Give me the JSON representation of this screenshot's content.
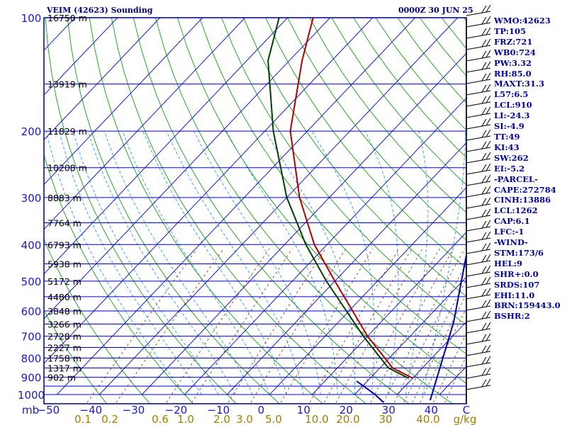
{
  "header": {
    "station_title": "VEIM (42623) Sounding",
    "datetime": "0000Z 30 JUN 25"
  },
  "theme": {
    "frame": "#000080",
    "isobar": "#0000cc",
    "isotherm": "#1a1acc",
    "dry_adiabat": "#2aa52a",
    "moist_adiabat": "#3fa0ff",
    "mixing_ratio": "#8b5a2b",
    "temperature": "#b00000",
    "dewpoint": "#004000",
    "wind_profile": "#0000a0",
    "label_pressure": "#1a1acc",
    "label_temperature": "#1a1acc",
    "label_mixing": "#a08000"
  },
  "chart_data": {
    "type": "line",
    "title": "VEIM (42623) Sounding",
    "subtitle": "0000Z 30 JUN 25",
    "diagram": "skew-T log-p",
    "yaxis": {
      "unit": "mb",
      "scale": "log",
      "range": [
        1000,
        100
      ],
      "pressure_ticks": [
        100,
        200,
        300,
        400,
        500,
        600,
        700,
        800,
        900,
        1000
      ]
    },
    "xaxis": {
      "temperature_ticks": [
        -50,
        -40,
        -30,
        -20,
        -10,
        0,
        10,
        20,
        30,
        40,
        "C"
      ],
      "temperature_ticks_text": [
        "−50",
        "−40",
        "−30",
        "−20",
        "−10",
        "0",
        "10",
        "20",
        "30",
        "40",
        "C"
      ],
      "mixing_ratio_ticks": [
        "0.1",
        "0.2",
        "0.6",
        "1.0",
        "2.0",
        "3.0",
        "5.0",
        "10.0",
        "20.0",
        "30",
        "40.0",
        "g/kg"
      ]
    },
    "height_labels": [
      {
        "p": 100,
        "label": "16750 m"
      },
      {
        "p": 150,
        "label": "13919 m"
      },
      {
        "p": 200,
        "label": "11829 m"
      },
      {
        "p": 250,
        "label": "10208 m"
      },
      {
        "p": 300,
        "label": "8883 m"
      },
      {
        "p": 350,
        "label": "7764 m"
      },
      {
        "p": 400,
        "label": "6793 m"
      },
      {
        "p": 450,
        "label": "5938 m"
      },
      {
        "p": 500,
        "label": "5172 m"
      },
      {
        "p": 550,
        "label": "4480 m"
      },
      {
        "p": 600,
        "label": "3848 m"
      },
      {
        "p": 650,
        "label": "3266 m"
      },
      {
        "p": 700,
        "label": "2728 m"
      },
      {
        "p": 750,
        "label": "2227 m"
      },
      {
        "p": 800,
        "label": "1758 m"
      },
      {
        "p": 850,
        "label": "1317 m"
      },
      {
        "p": 900,
        "label": "902 m"
      }
    ],
    "series": [
      {
        "points": [
          [
            905,
            30
          ],
          [
            850,
            23
          ],
          [
            700,
            10
          ],
          [
            500,
            -10
          ],
          [
            400,
            -23
          ],
          [
            300,
            -37
          ],
          [
            200,
            -54
          ],
          [
            130,
            -67
          ],
          [
            100,
            -74
          ]
        ]
      },
      {
        "points": [
          [
            905,
            29
          ],
          [
            850,
            22
          ],
          [
            700,
            9
          ],
          [
            500,
            -12
          ],
          [
            400,
            -25
          ],
          [
            300,
            -40
          ],
          [
            200,
            -58
          ],
          [
            130,
            -75
          ],
          [
            100,
            -82
          ]
        ]
      }
    ],
    "indices": [
      "WMO:42623",
      "TP:105",
      "FRZ:721",
      "WB0:724",
      "PW:3.32",
      "RH:85.0",
      "MAXT:31.3",
      "L57:6.5",
      "LCL:910",
      "LI:-24.3",
      "SI:-4.9",
      "TT:49",
      "KI:43",
      "SW:262",
      "EI:-5.2",
      "-PARCEL-",
      "CAPE:272784",
      "CINH:13886",
      "LCL:1262",
      "CAP:6.1",
      "LFC:-1",
      "-WIND-",
      "STM:173/6",
      "HEL:9",
      "SHR+:0.0",
      "SRDS:107",
      "EHI:11.0",
      "BRN:159443.0",
      "BSHR:2"
    ]
  }
}
